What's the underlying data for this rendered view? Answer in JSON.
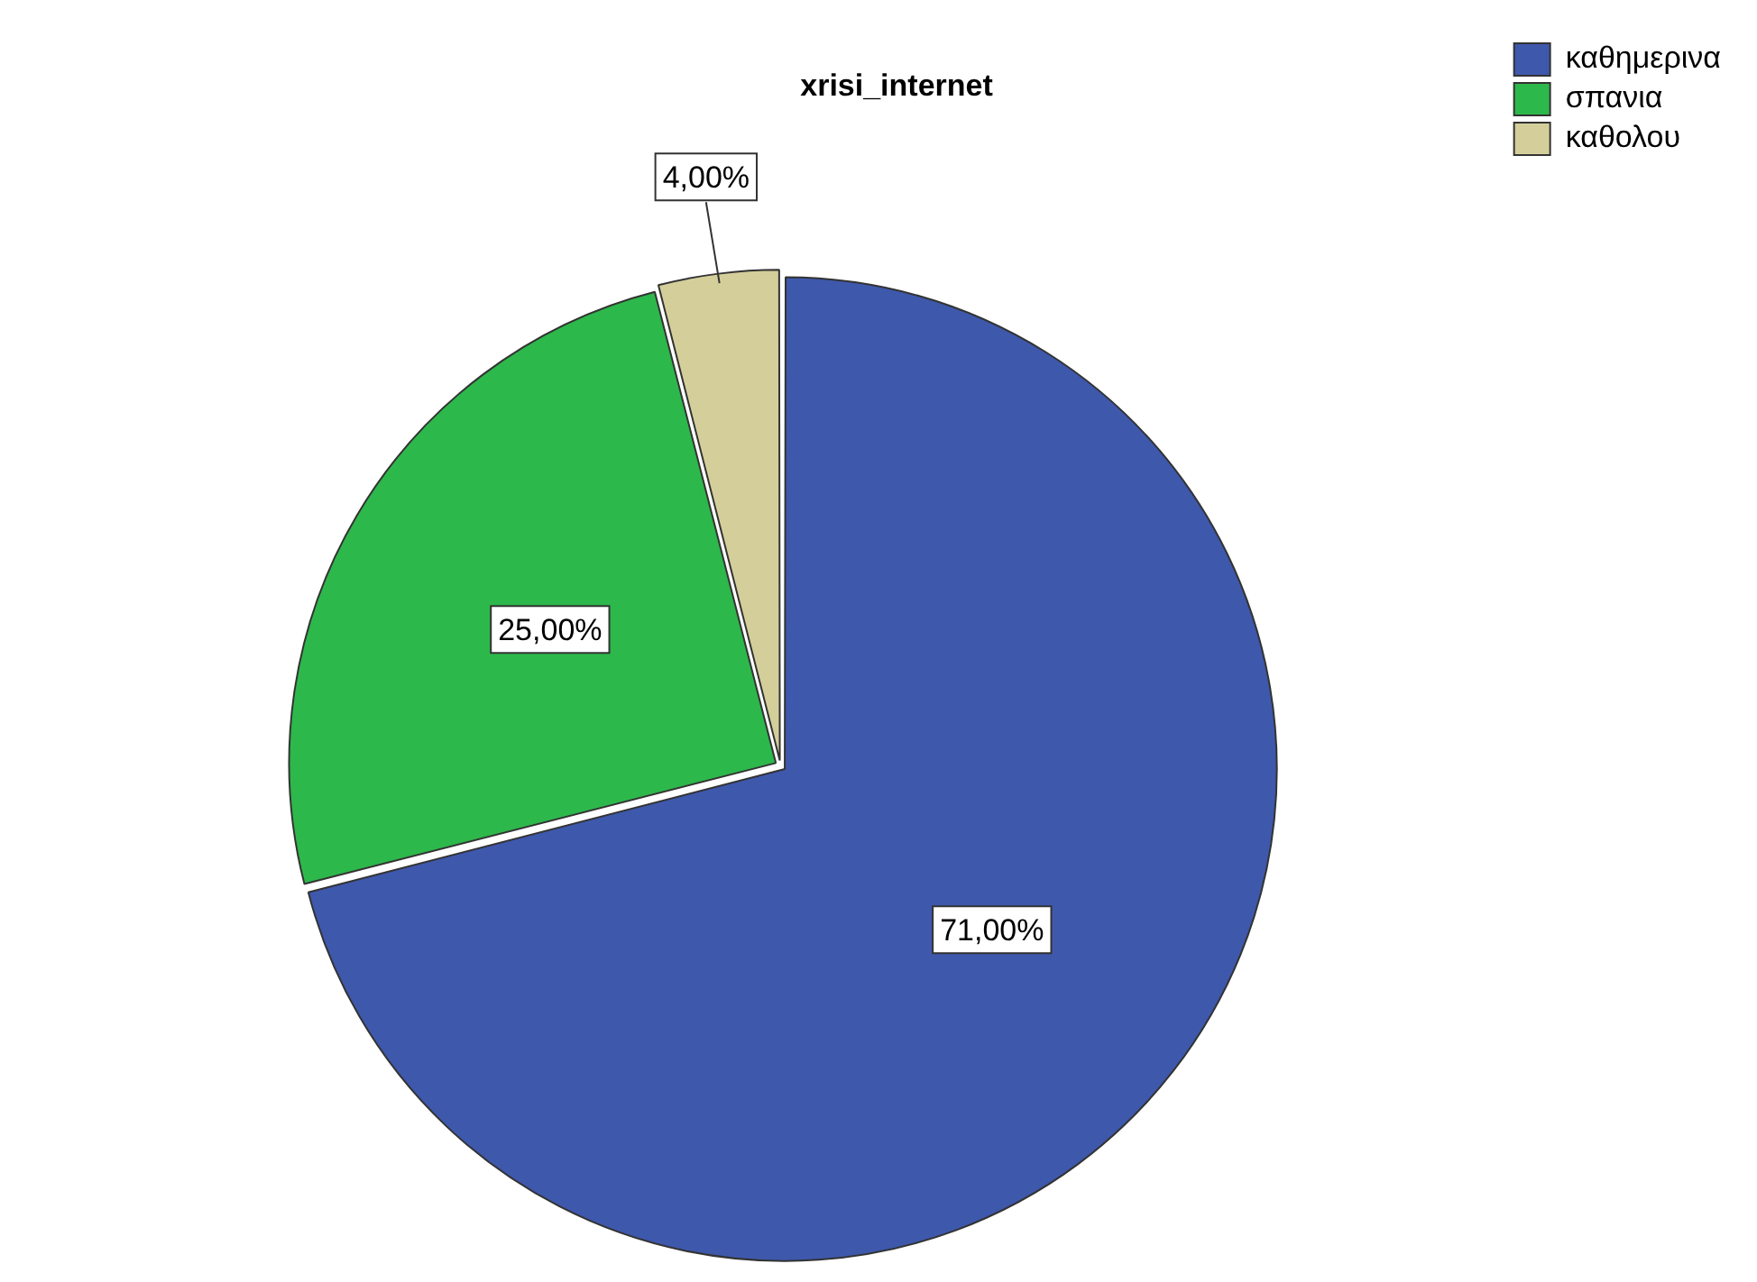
{
  "chart_data": {
    "type": "pie",
    "title": "xrisi_internet",
    "categories": [
      "καθημερινα",
      "σπανια",
      "καθολου"
    ],
    "values": [
      71,
      25,
      4
    ],
    "colors": [
      "#3e58ac",
      "#2db84b",
      "#d4cf9a"
    ],
    "value_labels": [
      "71,00%",
      "25,00%",
      "4,00%"
    ],
    "legend": "top right"
  }
}
